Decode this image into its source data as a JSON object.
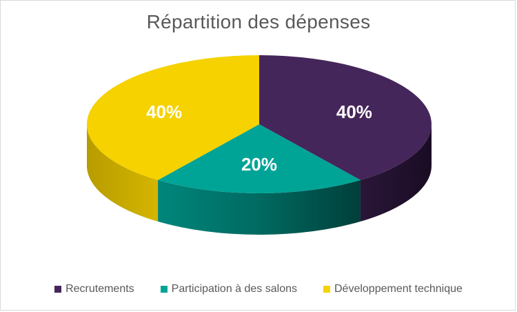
{
  "chart_data": {
    "type": "pie",
    "title": "Répartition des dépenses",
    "three_d": true,
    "legend_position": "bottom",
    "slices": [
      {
        "name": "Recrutements",
        "value": 40,
        "label": "40%",
        "color": "#45265a"
      },
      {
        "name": "Participation à des salons",
        "value": 20,
        "label": "20%",
        "color": "#00a496"
      },
      {
        "name": "Développement technique",
        "value": 40,
        "label": "40%",
        "color": "#f5d200"
      }
    ]
  }
}
